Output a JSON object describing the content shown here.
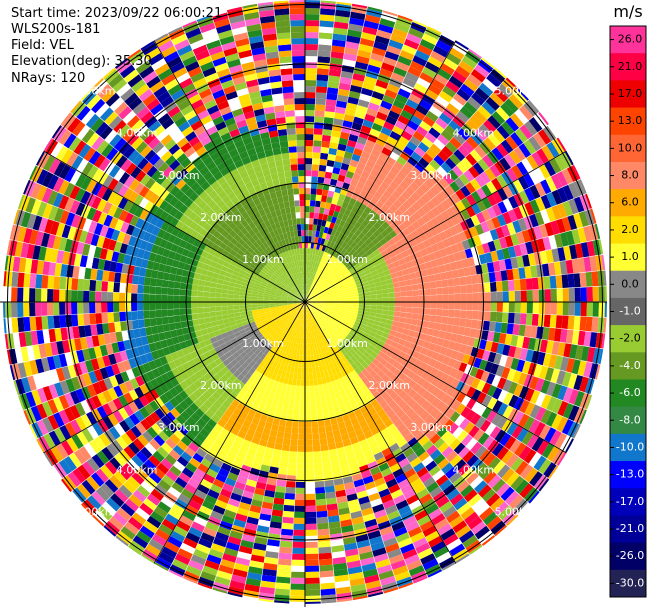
{
  "info": {
    "start_time": "Start time: 2023/09/22 06:00:21",
    "instrument": "WLS200s-181",
    "field": "Field: VEL",
    "elevation": "Elevation(deg): 35.30",
    "nrays": "NRays: 120"
  },
  "range_rings": [
    "1.00km",
    "2.00km",
    "3.00km",
    "4.00km",
    "5.00km"
  ],
  "colorbar": {
    "unit": "m/s",
    "ticks": [
      "26.0",
      "21.0",
      "17.0",
      "13.0",
      "10.0",
      "8.0",
      "6.0",
      "2.0",
      "1.0",
      "0.0",
      "-1.0",
      "-2.0",
      "-4.0",
      "-6.0",
      "-8.0",
      "-10.0",
      "-13.0",
      "-17.0",
      "-21.0",
      "-26.0",
      "-30.0"
    ],
    "colors": [
      "#ff3399",
      "#ff0044",
      "#ee0000",
      "#ff4400",
      "#ff6633",
      "#ff8866",
      "#ffaa00",
      "#ffdd00",
      "#ffff33",
      "#888888",
      "#666666",
      "#99cc33",
      "#669922",
      "#228822",
      "#338844",
      "#1177cc",
      "#0000ff",
      "#0000bb",
      "#000099",
      "#000066",
      "#222255"
    ]
  }
}
